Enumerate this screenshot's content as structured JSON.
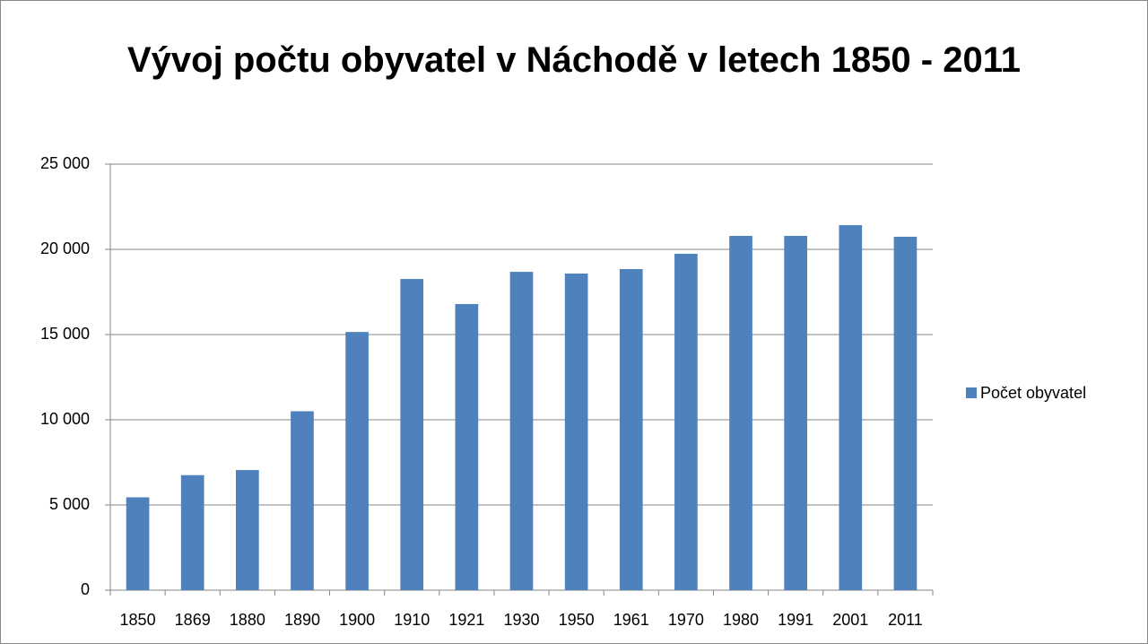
{
  "chart_data": {
    "type": "bar",
    "title": "Vývoj počtu obyvatel v Náchodě v letech 1850 - 2011",
    "categories": [
      "1850",
      "1869",
      "1880",
      "1890",
      "1900",
      "1910",
      "1921",
      "1930",
      "1950",
      "1961",
      "1970",
      "1980",
      "1991",
      "2001",
      "2011"
    ],
    "series": [
      {
        "name": "Počet obyvatel",
        "color": "#4f81bd",
        "values": [
          5450,
          6750,
          7050,
          10500,
          15150,
          18260,
          16790,
          18680,
          18580,
          18840,
          19740,
          20790,
          20790,
          21420,
          20740
        ]
      }
    ],
    "ylim": [
      0,
      25000
    ],
    "yticks": [
      0,
      {
        "value": 5000,
        "label": "5 000"
      },
      {
        "value": 10000,
        "label": "10 000"
      },
      {
        "value": 15000,
        "label": "15 000"
      },
      {
        "value": 20000,
        "label": "20 000"
      },
      {
        "value": 25000,
        "label": "25 000"
      }
    ],
    "grid": true,
    "legend": "right"
  }
}
